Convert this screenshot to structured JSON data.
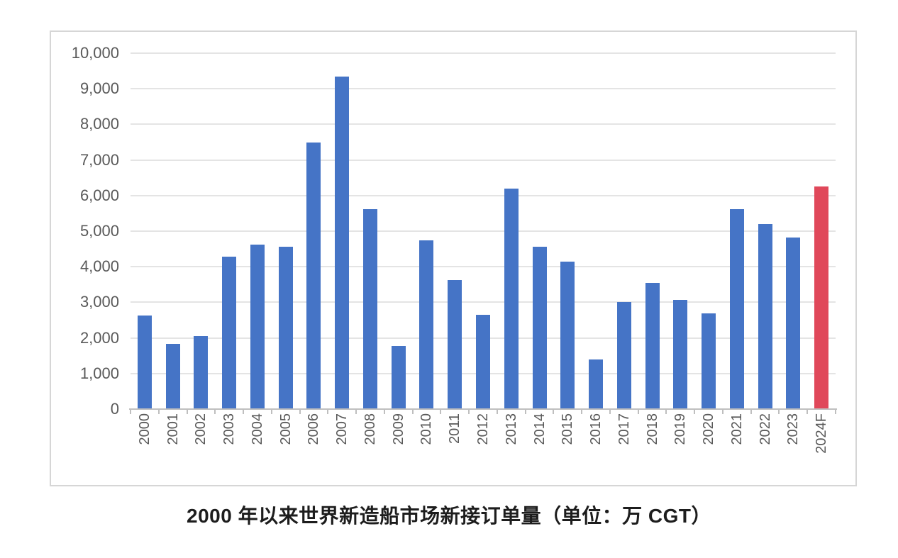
{
  "chart_data": {
    "type": "bar",
    "title": "2000 年以来世界新造船市场新接订单量（单位：万 CGT）",
    "categories": [
      "2000",
      "2001",
      "2002",
      "2003",
      "2004",
      "2005",
      "2006",
      "2007",
      "2008",
      "2009",
      "2010",
      "2011",
      "2012",
      "2013",
      "2014",
      "2015",
      "2016",
      "2017",
      "2018",
      "2019",
      "2020",
      "2021",
      "2022",
      "2023",
      "2024F"
    ],
    "values": [
      2620,
      1830,
      2050,
      4290,
      4630,
      4570,
      7490,
      9350,
      5620,
      1780,
      4750,
      3630,
      2650,
      6200,
      4570,
      4150,
      1400,
      3010,
      3550,
      3070,
      2690,
      5620,
      5200,
      4820,
      6260
    ],
    "highlight_index": 24,
    "xlabel": "",
    "ylabel": "",
    "ylim": [
      0,
      10000
    ],
    "ytick_interval": 1000,
    "ytick_labels": [
      "0",
      "1,000",
      "2,000",
      "3,000",
      "4,000",
      "5,000",
      "6,000",
      "7,000",
      "8,000",
      "9,000",
      "10,000"
    ],
    "grid": "horizontal",
    "legend_position": "none",
    "xlabel_rotation": -90
  },
  "colors": {
    "bar_default": "#4574c6",
    "bar_highlight": "#e0485a",
    "gridline": "#e4e4e4",
    "axis_line": "#bfbfbf",
    "axis_text": "#595959",
    "frame_border": "#d6d6d6",
    "title_text": "#1d1d1d",
    "background": "#ffffff"
  }
}
